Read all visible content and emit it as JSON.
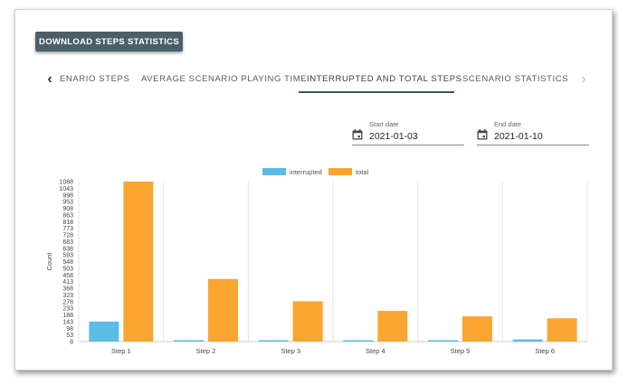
{
  "toolbar": {
    "download_label": "DOWNLOAD STEPS STATISTICS"
  },
  "tabs": {
    "items": [
      {
        "label": "ENARIO STEPS"
      },
      {
        "label": "AVERAGE SCENARIO PLAYING TIME"
      },
      {
        "label": "INTERRUPTED AND TOTAL STEPS"
      },
      {
        "label": "SCENARIO STATISTICS"
      }
    ],
    "active_index": 2,
    "prev_icon": "chevron-left-icon",
    "next_icon": "chevron-right-icon"
  },
  "filters": {
    "start": {
      "label": "Start date",
      "value": "2021-01-03",
      "icon": "calendar-icon"
    },
    "end": {
      "label": "End date",
      "value": "2021-01-10",
      "icon": "calendar-icon"
    }
  },
  "colors": {
    "interrupted": "#5bbce8",
    "total": "#f9a530",
    "accent": "#3d5560"
  },
  "chart_data": {
    "type": "bar",
    "categories": [
      "Step 1",
      "Step 2",
      "Step 3",
      "Step 4",
      "Step 5",
      "Step 6"
    ],
    "series": [
      {
        "name": "interrupted",
        "values": [
          143,
          12,
          10,
          5,
          5,
          22
        ]
      },
      {
        "name": "total",
        "values": [
          1088,
          430,
          280,
          215,
          178,
          165
        ]
      }
    ],
    "ylabel": "Count",
    "xlabel": "",
    "ylim": [
      8,
      1088
    ],
    "yticks": [
      1088,
      1043,
      998,
      953,
      908,
      863,
      818,
      773,
      728,
      683,
      638,
      593,
      548,
      503,
      458,
      413,
      368,
      323,
      278,
      233,
      188,
      143,
      98,
      53,
      8
    ],
    "legend": "top-center",
    "grid": "vertical"
  }
}
